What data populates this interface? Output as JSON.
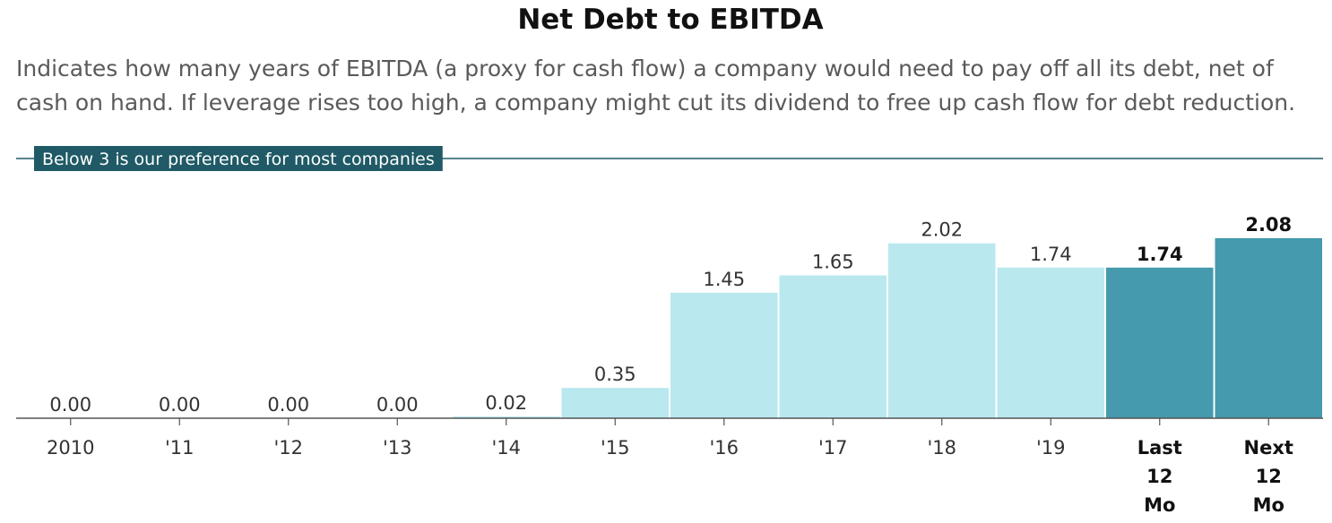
{
  "title": "Net Debt to EBITDA",
  "subtitle": "Indicates how many years of EBITDA (a proxy for cash flow) a company would need to pay off all its debt, net of cash on hand. If leverage rises too high, a company might cut its dividend to free up cash flow for debt reduction.",
  "colors": {
    "historical": "#b9e8ef",
    "current": "#459aad",
    "threshold": "#1f5a66",
    "axis": "#555555"
  },
  "chart_data": {
    "type": "bar",
    "title": "Net Debt to EBITDA",
    "categories": [
      "2010",
      "'11",
      "'12",
      "'13",
      "'14",
      "'15",
      "'16",
      "'17",
      "'18",
      "'19",
      "Last 12 Mo",
      "Next 12 Mo"
    ],
    "values": [
      0.0,
      0.0,
      0.0,
      0.0,
      0.02,
      0.35,
      1.45,
      1.65,
      2.02,
      1.74,
      1.74,
      2.08
    ],
    "value_labels": [
      "0.00",
      "0.00",
      "0.00",
      "0.00",
      "0.02",
      "0.35",
      "1.45",
      "1.65",
      "2.02",
      "1.74",
      "1.74",
      "2.08"
    ],
    "tick_labels": [
      [
        "2010"
      ],
      [
        "'11"
      ],
      [
        "'12"
      ],
      [
        "'13"
      ],
      [
        "'14"
      ],
      [
        "'15"
      ],
      [
        "'16"
      ],
      [
        "'17"
      ],
      [
        "'18"
      ],
      [
        "'19"
      ],
      [
        "Last",
        "12",
        "Mo"
      ],
      [
        "Next",
        "12",
        "Mo"
      ]
    ],
    "highlighted": [
      false,
      false,
      false,
      false,
      false,
      false,
      false,
      false,
      false,
      false,
      true,
      true
    ],
    "ylim": [
      0,
      3
    ],
    "threshold": {
      "value": 3,
      "label": "Below 3 is our preference for most companies"
    },
    "grid": false,
    "legend": "none"
  }
}
